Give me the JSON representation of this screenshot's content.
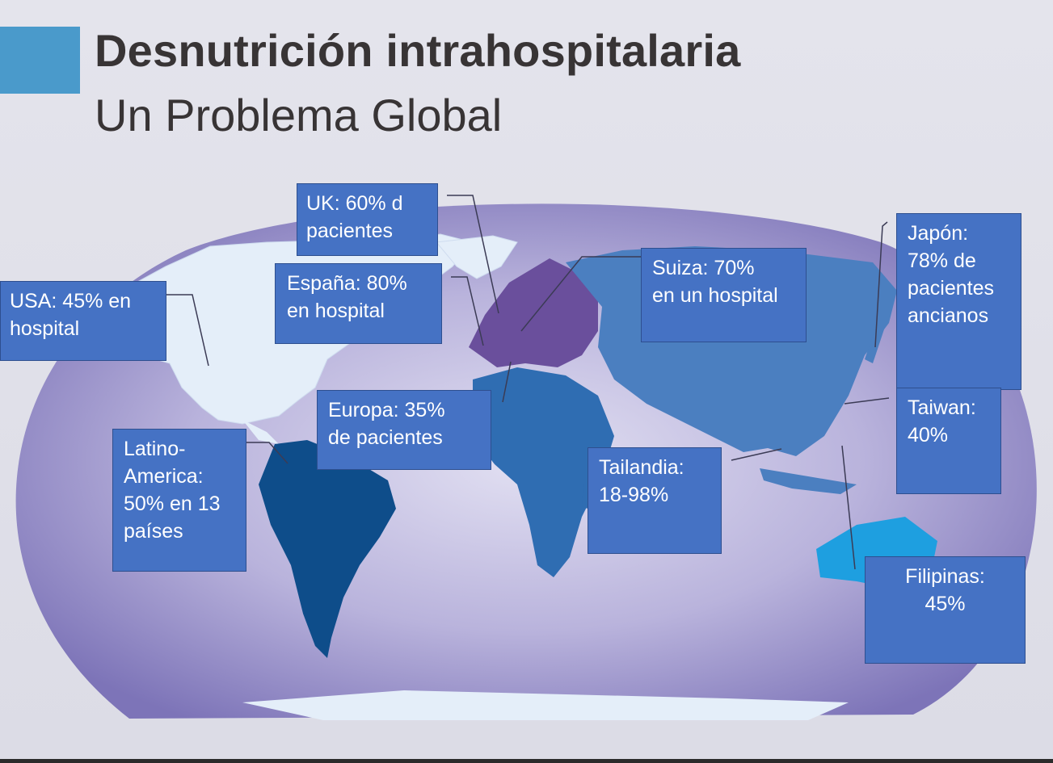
{
  "slide": {
    "title": "Desnutrición intrahospitalaria",
    "subtitle": "Un Problema Global"
  },
  "colors": {
    "accent": "#4a9acb",
    "callout_fill": "#4572c4",
    "ocean": "#8a82c0",
    "north_america": "#e4eef9",
    "south_america": "#0e4d8a",
    "europe": "#6a4f9c",
    "africa": "#2f6db2",
    "asia": "#4b7fc0",
    "australia": "#1e9fe0"
  },
  "callouts": {
    "usa": {
      "line1": "USA: 45% en",
      "line2": "hospital"
    },
    "uk": {
      "line1": "UK: 60% d",
      "line2": "pacientes"
    },
    "espana": {
      "line1": "España: 80%",
      "line2": "en  hospital"
    },
    "suiza": {
      "line1": "Suiza: 70%",
      "line2": "en un hospital"
    },
    "japon": {
      "line1": "Japón:",
      "line2": "78% de",
      "line3": "pacientes",
      "line4": "ancianos"
    },
    "europa": {
      "line1": "Europa: 35%",
      "line2": "de pacientes"
    },
    "latam": {
      "line1": "Latino-",
      "line2": "America:",
      "line3": "50% en 13",
      "line4": "países"
    },
    "tailandia": {
      "line1": "Tailandia:",
      "line2": "18-98%"
    },
    "taiwan": {
      "line1": "Taiwan:",
      "line2": "40%"
    },
    "filipinas": {
      "line1": "Filipinas:",
      "line2": "45%"
    }
  }
}
